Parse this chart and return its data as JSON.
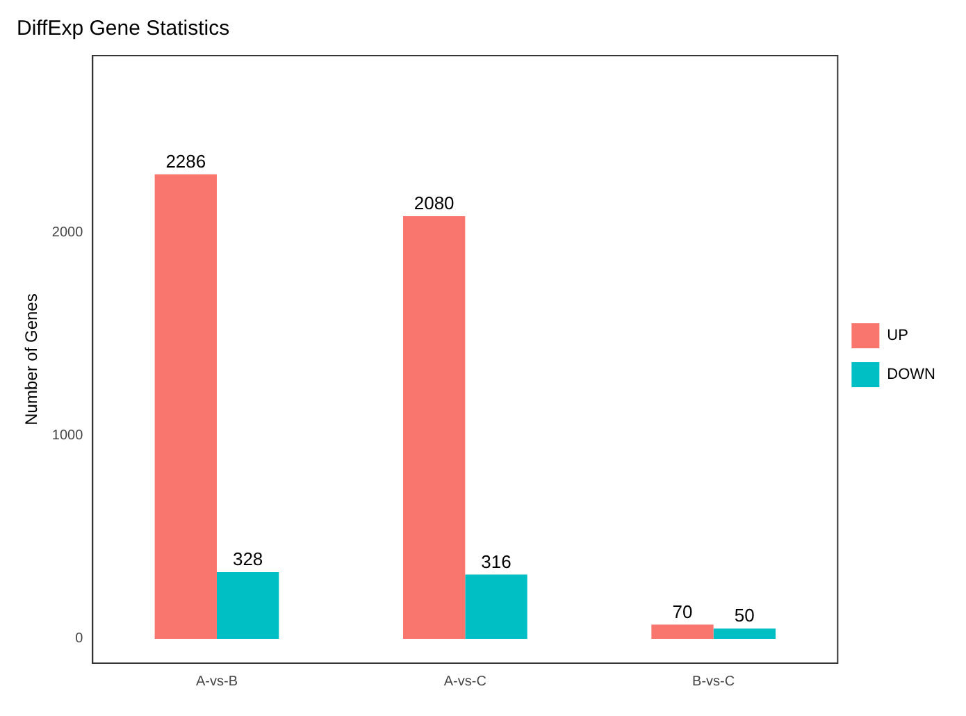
{
  "chart_data": {
    "type": "bar",
    "title": "DiffExp Gene Statistics",
    "ylabel": "Number of Genes",
    "categories": [
      "A-vs-B",
      "A-vs-C",
      "B-vs-C"
    ],
    "series": [
      {
        "name": "UP",
        "color": "#f8766d",
        "values": [
          2286,
          2080,
          70
        ]
      },
      {
        "name": "DOWN",
        "color": "#00bfc4",
        "values": [
          328,
          316,
          50
        ]
      }
    ],
    "ylim": [
      -120,
      2870
    ],
    "yticks": [
      0,
      1000,
      2000
    ],
    "grid": false,
    "legend": "right",
    "data_labels": true
  }
}
